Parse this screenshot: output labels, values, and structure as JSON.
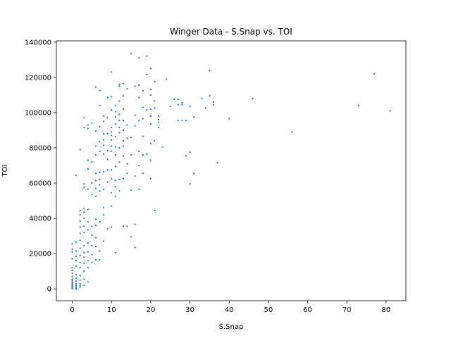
{
  "chart_data": {
    "type": "scatter",
    "title": "Winger Data - S.Snap vs. TOI",
    "xlabel": "S.Snap",
    "ylabel": "TOI",
    "xlim": [
      -4.05,
      85.05
    ],
    "ylim": [
      -6700,
      140700
    ],
    "xticks": [
      0,
      10,
      20,
      30,
      40,
      50,
      60,
      70,
      80
    ],
    "yticks": [
      0,
      20000,
      40000,
      60000,
      80000,
      100000,
      120000,
      140000
    ],
    "grid": false,
    "legend": "none",
    "marker_color": "#1f77b4",
    "points": [
      [
        0,
        1000
      ],
      [
        0,
        1800
      ],
      [
        0,
        2500
      ],
      [
        0,
        3200
      ],
      [
        0,
        4000
      ],
      [
        0,
        4800
      ],
      [
        0,
        5500
      ],
      [
        0,
        7000
      ],
      [
        0,
        9000
      ],
      [
        0,
        10500
      ],
      [
        0,
        12000
      ],
      [
        0,
        17000
      ],
      [
        0,
        21000
      ],
      [
        0,
        22500
      ],
      [
        0,
        25500
      ],
      [
        0,
        0
      ],
      [
        0,
        600
      ],
      [
        0,
        1400
      ],
      [
        0,
        2200
      ],
      [
        0,
        3600
      ],
      [
        1,
        0
      ],
      [
        1,
        1500
      ],
      [
        1,
        3000
      ],
      [
        1,
        4500
      ],
      [
        1,
        6000
      ],
      [
        1,
        8000
      ],
      [
        1,
        13000
      ],
      [
        1,
        16000
      ],
      [
        1,
        18500
      ],
      [
        1,
        21500
      ],
      [
        1,
        26500
      ],
      [
        1,
        64500
      ],
      [
        1,
        600
      ],
      [
        1,
        2000
      ],
      [
        2,
        1000
      ],
      [
        2,
        3000
      ],
      [
        2,
        5000
      ],
      [
        2,
        7500
      ],
      [
        2,
        12000
      ],
      [
        2,
        15000
      ],
      [
        2,
        19000
      ],
      [
        2,
        23000
      ],
      [
        2,
        27500
      ],
      [
        2,
        31500
      ],
      [
        2,
        35000
      ],
      [
        2,
        38500
      ],
      [
        2,
        42000
      ],
      [
        2,
        44500
      ],
      [
        2,
        79000
      ],
      [
        2,
        2000
      ],
      [
        3,
        2000
      ],
      [
        3,
        5500
      ],
      [
        3,
        10000
      ],
      [
        3,
        14500
      ],
      [
        3,
        18000
      ],
      [
        3,
        20500
      ],
      [
        3,
        24500
      ],
      [
        3,
        32000
      ],
      [
        3,
        35500
      ],
      [
        3,
        40000
      ],
      [
        3,
        43500
      ],
      [
        3,
        45500
      ],
      [
        3,
        57500
      ],
      [
        3,
        59500
      ],
      [
        3,
        91500
      ],
      [
        3,
        97000
      ],
      [
        4,
        4000
      ],
      [
        4,
        12000
      ],
      [
        4,
        16000
      ],
      [
        4,
        21000
      ],
      [
        4,
        26000
      ],
      [
        4,
        33500
      ],
      [
        4,
        38000
      ],
      [
        4,
        45000
      ],
      [
        4,
        56500
      ],
      [
        4,
        68000
      ],
      [
        4,
        73000
      ],
      [
        4,
        91000
      ],
      [
        4,
        93000
      ],
      [
        5,
        15000
      ],
      [
        5,
        19500
      ],
      [
        5,
        24500
      ],
      [
        5,
        30500
      ],
      [
        5,
        35500
      ],
      [
        5,
        53500
      ],
      [
        5,
        60000
      ],
      [
        5,
        72000
      ],
      [
        5,
        94000
      ],
      [
        6,
        16500
      ],
      [
        6,
        24000
      ],
      [
        6,
        29000
      ],
      [
        6,
        36000
      ],
      [
        6,
        39500
      ],
      [
        6,
        52500
      ],
      [
        6,
        57000
      ],
      [
        6,
        61500
      ],
      [
        6,
        65500
      ],
      [
        6,
        76000
      ],
      [
        6,
        81000
      ],
      [
        6,
        89500
      ],
      [
        6,
        114500
      ],
      [
        7,
        16500
      ],
      [
        7,
        21500
      ],
      [
        7,
        38000
      ],
      [
        7,
        55500
      ],
      [
        7,
        59000
      ],
      [
        7,
        62000
      ],
      [
        7,
        66000
      ],
      [
        7,
        78000
      ],
      [
        7,
        83500
      ],
      [
        7,
        92000
      ],
      [
        7,
        104000
      ],
      [
        7,
        112500
      ],
      [
        8,
        27000
      ],
      [
        8,
        42000
      ],
      [
        8,
        46000
      ],
      [
        8,
        56500
      ],
      [
        8,
        66500
      ],
      [
        8,
        76500
      ],
      [
        8,
        81500
      ],
      [
        8,
        84500
      ],
      [
        8,
        88000
      ],
      [
        8,
        95000
      ],
      [
        8,
        98000
      ],
      [
        9,
        34000
      ],
      [
        9,
        60500
      ],
      [
        9,
        67500
      ],
      [
        9,
        73500
      ],
      [
        9,
        78500
      ],
      [
        9,
        88000
      ],
      [
        9,
        97000
      ],
      [
        9,
        108500
      ],
      [
        10,
        35000
      ],
      [
        10,
        47000
      ],
      [
        10,
        54500
      ],
      [
        10,
        62500
      ],
      [
        10,
        67500
      ],
      [
        10,
        78000
      ],
      [
        10,
        81000
      ],
      [
        10,
        84500
      ],
      [
        10,
        87000
      ],
      [
        10,
        89000
      ],
      [
        10,
        91500
      ],
      [
        10,
        101500
      ],
      [
        10,
        109000
      ],
      [
        10,
        123000
      ],
      [
        11,
        20500
      ],
      [
        11,
        52500
      ],
      [
        11,
        58000
      ],
      [
        11,
        61500
      ],
      [
        11,
        69500
      ],
      [
        11,
        76000
      ],
      [
        11,
        80500
      ],
      [
        11,
        86500
      ],
      [
        11,
        93500
      ],
      [
        11,
        97500
      ],
      [
        11,
        100500
      ],
      [
        11,
        104000
      ],
      [
        12,
        55500
      ],
      [
        12,
        62000
      ],
      [
        12,
        72000
      ],
      [
        12,
        80000
      ],
      [
        12,
        88500
      ],
      [
        12,
        91500
      ],
      [
        12,
        95500
      ],
      [
        12,
        99000
      ],
      [
        12,
        106500
      ],
      [
        12,
        115000
      ],
      [
        12,
        116000
      ],
      [
        13,
        35500
      ],
      [
        13,
        62500
      ],
      [
        13,
        75500
      ],
      [
        13,
        81000
      ],
      [
        13,
        84000
      ],
      [
        13,
        90000
      ],
      [
        13,
        95500
      ],
      [
        13,
        102000
      ],
      [
        13,
        109500
      ],
      [
        13,
        116500
      ],
      [
        14,
        35500
      ],
      [
        14,
        65500
      ],
      [
        14,
        71000
      ],
      [
        14,
        85500
      ],
      [
        14,
        93000
      ],
      [
        14,
        113500
      ],
      [
        15,
        29500
      ],
      [
        15,
        56000
      ],
      [
        15,
        76000
      ],
      [
        15,
        86000
      ],
      [
        15,
        133500
      ],
      [
        16,
        23500
      ],
      [
        16,
        36500
      ],
      [
        16,
        64000
      ],
      [
        16,
        92500
      ],
      [
        16,
        98500
      ],
      [
        16,
        115000
      ],
      [
        17,
        56500
      ],
      [
        17,
        70000
      ],
      [
        17,
        78000
      ],
      [
        17,
        95500
      ],
      [
        17,
        108500
      ],
      [
        17,
        115500
      ],
      [
        17,
        131000
      ],
      [
        18,
        65500
      ],
      [
        18,
        76000
      ],
      [
        18,
        86500
      ],
      [
        18,
        96500
      ],
      [
        18,
        103000
      ],
      [
        18,
        112500
      ],
      [
        19,
        76500
      ],
      [
        19,
        101500
      ],
      [
        19,
        121500
      ],
      [
        19,
        132000
      ],
      [
        20,
        62500
      ],
      [
        20,
        73000
      ],
      [
        20,
        82500
      ],
      [
        20,
        93500
      ],
      [
        20,
        98000
      ],
      [
        20,
        102000
      ],
      [
        20,
        110000
      ],
      [
        20,
        113000
      ],
      [
        20,
        125000
      ],
      [
        21,
        44500
      ],
      [
        21,
        84000
      ],
      [
        21,
        102500
      ],
      [
        21,
        106500
      ],
      [
        21,
        117500
      ],
      [
        22,
        94500
      ],
      [
        22,
        96000
      ],
      [
        22,
        98000
      ],
      [
        22,
        91500
      ],
      [
        23,
        80500
      ],
      [
        24,
        119000
      ],
      [
        25,
        103500
      ],
      [
        26,
        107500
      ],
      [
        27,
        95500
      ],
      [
        27,
        104500
      ],
      [
        27,
        107500
      ],
      [
        28,
        95500
      ],
      [
        28,
        104500
      ],
      [
        28,
        105500
      ],
      [
        29,
        75500
      ],
      [
        29,
        95500
      ],
      [
        30,
        59500
      ],
      [
        30,
        77500
      ],
      [
        30,
        103500
      ],
      [
        31,
        65500
      ],
      [
        31,
        97500
      ],
      [
        33,
        108000
      ],
      [
        34,
        102500
      ],
      [
        35,
        109500
      ],
      [
        35,
        124000
      ],
      [
        36,
        104500
      ],
      [
        36,
        106000
      ],
      [
        37,
        71500
      ],
      [
        40,
        96500
      ],
      [
        46,
        108000
      ],
      [
        56,
        89000
      ],
      [
        73,
        104000
      ],
      [
        77,
        122000
      ],
      [
        81,
        101000
      ]
    ]
  }
}
